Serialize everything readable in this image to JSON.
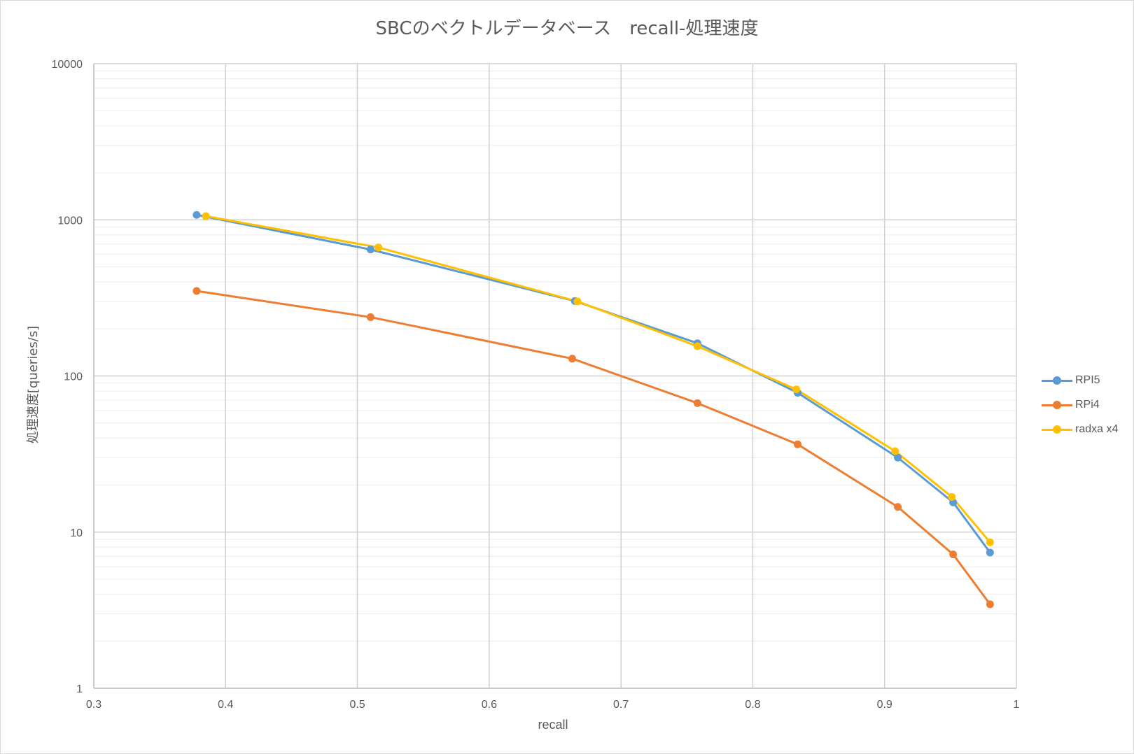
{
  "chart_data": {
    "type": "line",
    "title": "SBCのベクトルデータベース　recall-処理速度",
    "xlabel": "recall",
    "ylabel": "処理速度[queries/s]",
    "xlim": [
      0.3,
      1
    ],
    "ylim": [
      1,
      10000
    ],
    "y_scale": "log",
    "x_ticks": [
      "0.3",
      "0.4",
      "0.5",
      "0.6",
      "0.7",
      "0.8",
      "0.9",
      "1"
    ],
    "y_ticks": [
      "1",
      "10",
      "100",
      "1000",
      "10000"
    ],
    "grid": true,
    "legend_position": "right",
    "series": [
      {
        "name": "RPI5",
        "color": "#5b9bd5",
        "x": [
          0.378,
          0.51,
          0.665,
          0.758,
          0.834,
          0.91,
          0.952,
          0.98
        ],
        "y": [
          1075,
          645,
          302,
          162,
          78,
          30,
          15.5,
          7.4
        ]
      },
      {
        "name": "RPi4",
        "color": "#ed7d31",
        "x": [
          0.378,
          0.51,
          0.663,
          0.758,
          0.834,
          0.91,
          0.952,
          0.98
        ],
        "y": [
          350,
          238,
          129,
          67,
          36.5,
          14.5,
          7.2,
          3.45
        ]
      },
      {
        "name": "radxa x4",
        "color": "#ffc000",
        "x": [
          0.385,
          0.516,
          0.667,
          0.758,
          0.833,
          0.908,
          0.951,
          0.98
        ],
        "y": [
          1055,
          665,
          300,
          155,
          82,
          33,
          16.8,
          8.6
        ]
      }
    ]
  }
}
